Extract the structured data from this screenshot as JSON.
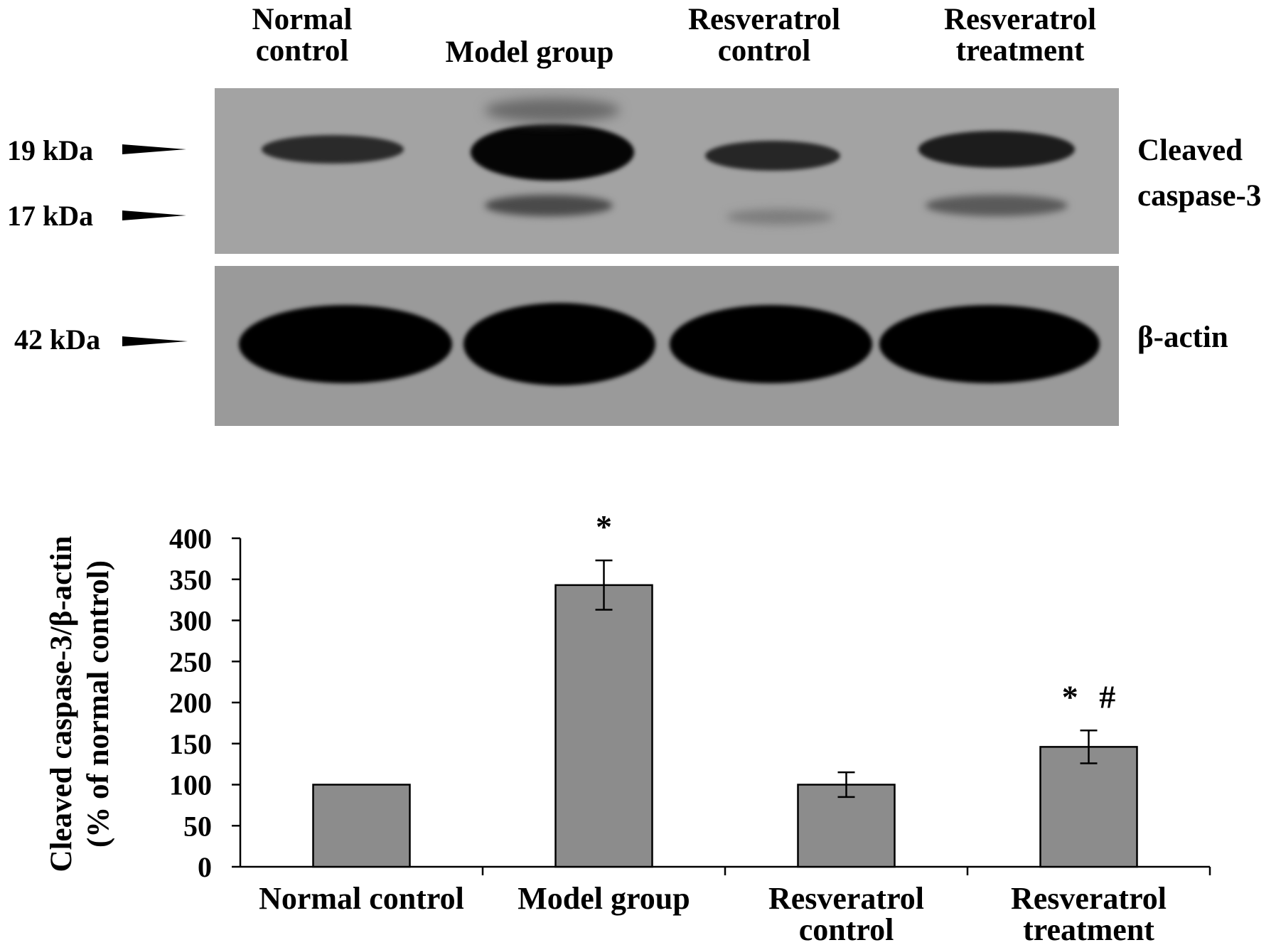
{
  "blot": {
    "lanes": [
      "Normal\ncontrol",
      "Model group",
      "Resveratrol\ncontrol",
      "Resveratrol\ntreatment"
    ],
    "markers": {
      "kda19": "19 kDa",
      "kda17": "17 kDa",
      "kda42": "42 kDa"
    },
    "proteins": {
      "caspase_line1": "Cleaved",
      "caspase_line2": "caspase-3",
      "actin": "β-actin"
    }
  },
  "chart_data": {
    "type": "bar",
    "categories": [
      "Normal control",
      "Model group",
      "Resveratrol control",
      "Resveratrol treatment"
    ],
    "category_lines": [
      [
        "Normal control"
      ],
      [
        "Model group"
      ],
      [
        "Resveratrol",
        "control"
      ],
      [
        "Resveratrol",
        "treatment"
      ]
    ],
    "values": [
      100,
      343,
      100,
      146
    ],
    "errors": [
      0,
      30,
      15,
      20
    ],
    "annotations": [
      "",
      "*",
      "",
      "* #"
    ],
    "ylabel": "Cleaved caspase-3/β-actin",
    "ylabel2": "(% of normal control)",
    "ylim": [
      0,
      400
    ],
    "yticks": [
      0,
      50,
      100,
      150,
      200,
      250,
      300,
      350,
      400
    ],
    "bar_color": "#8c8c8c",
    "grid": false
  }
}
